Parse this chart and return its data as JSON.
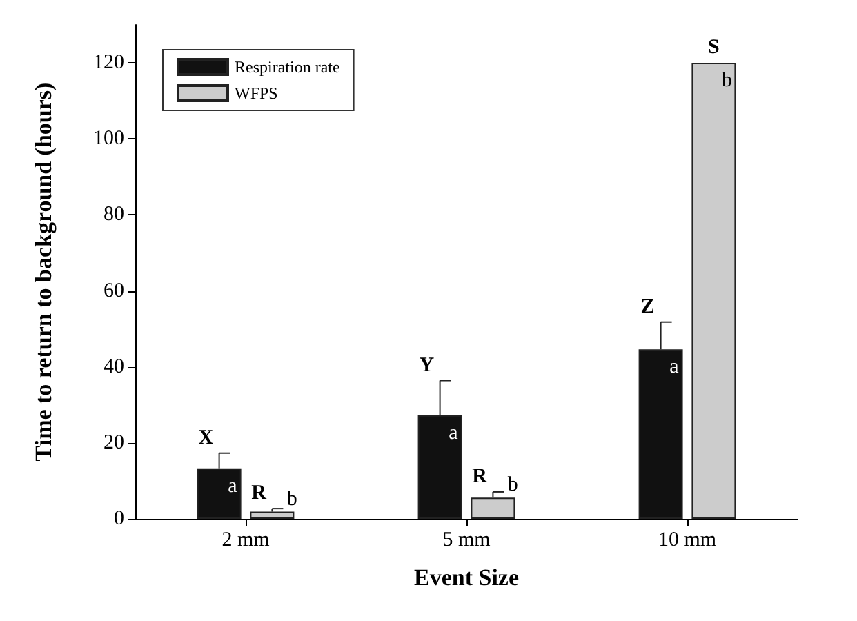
{
  "chart_data": {
    "type": "bar",
    "xlabel": "Event Size",
    "ylabel": "Time to return to background (hours)",
    "categories": [
      "2 mm",
      "5 mm",
      "10 mm"
    ],
    "series": [
      {
        "name": "Respiration rate",
        "color": "#111111",
        "values": [
          13.3,
          27.3,
          44.6
        ],
        "errors": [
          4.0,
          9.1,
          7.2
        ]
      },
      {
        "name": "WFPS",
        "color": "#cccccc",
        "values": [
          1.9,
          5.6,
          120
        ],
        "errors": [
          0.8,
          1.5,
          null
        ]
      }
    ],
    "ylim": [
      0,
      130
    ],
    "yticks": [
      0,
      20,
      40,
      60,
      80,
      100,
      120
    ],
    "grid": false,
    "legend": "top left",
    "annotations": [
      "X",
      "a",
      "R",
      "b",
      "Y",
      "a",
      "R",
      "b",
      "Z",
      "a",
      "S",
      "b"
    ]
  }
}
